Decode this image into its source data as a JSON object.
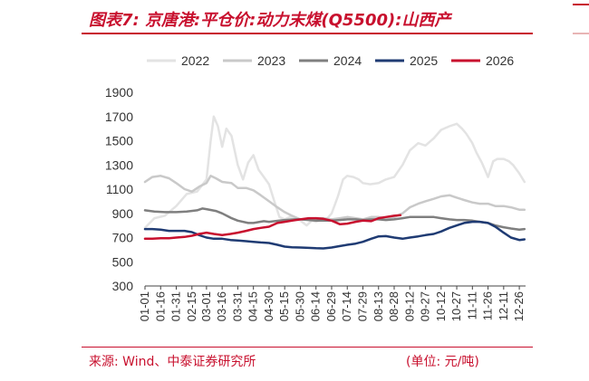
{
  "header": {
    "title": "图表7:  京唐港:平仓价:动力末煤(Q5500):山西产"
  },
  "footer": {
    "source": "来源:  Wind、中泰证券研究所",
    "unit": "(单位:  元/吨)"
  },
  "colors": {
    "accent": "#c8102e"
  },
  "chart_data": {
    "type": "line",
    "title": "",
    "xlabel": "",
    "ylabel": "",
    "ylim": [
      300,
      1900
    ],
    "yticks": [
      300,
      500,
      700,
      900,
      1100,
      1300,
      1500,
      1700,
      1900
    ],
    "xlim_doy": [
      1,
      366
    ],
    "xticks": [
      "01-01",
      "01-16",
      "01-31",
      "02-15",
      "03-01",
      "03-16",
      "03-31",
      "04-15",
      "04-30",
      "05-15",
      "05-30",
      "06-14",
      "06-29",
      "07-14",
      "07-29",
      "08-13",
      "08-28",
      "09-12",
      "09-27",
      "10-12",
      "10-27",
      "11-11",
      "11-26",
      "12-11",
      "12-26"
    ],
    "legend_position": "top",
    "grid": false,
    "series": [
      {
        "name": "2022",
        "color": "#e3e3e3",
        "points": [
          [
            "01-01",
            780
          ],
          [
            "01-10",
            860
          ],
          [
            "01-20",
            880
          ],
          [
            "01-31",
            960
          ],
          [
            "02-10",
            1060
          ],
          [
            "02-20",
            1080
          ],
          [
            "03-01",
            1180
          ],
          [
            "03-05",
            1500
          ],
          [
            "03-08",
            1700
          ],
          [
            "03-12",
            1620
          ],
          [
            "03-16",
            1450
          ],
          [
            "03-20",
            1600
          ],
          [
            "03-25",
            1540
          ],
          [
            "03-31",
            1300
          ],
          [
            "04-05",
            1180
          ],
          [
            "04-10",
            1320
          ],
          [
            "04-15",
            1380
          ],
          [
            "04-20",
            1260
          ],
          [
            "04-25",
            1200
          ],
          [
            "04-30",
            1140
          ],
          [
            "05-05",
            1000
          ],
          [
            "05-10",
            870
          ],
          [
            "05-15",
            850
          ],
          [
            "05-20",
            870
          ],
          [
            "05-25",
            850
          ],
          [
            "05-30",
            840
          ],
          [
            "06-05",
            800
          ],
          [
            "06-10",
            840
          ],
          [
            "06-14",
            830
          ],
          [
            "06-20",
            850
          ],
          [
            "06-25",
            860
          ],
          [
            "06-29",
            900
          ],
          [
            "07-05",
            1040
          ],
          [
            "07-10",
            1180
          ],
          [
            "07-14",
            1210
          ],
          [
            "07-20",
            1200
          ],
          [
            "07-25",
            1180
          ],
          [
            "07-29",
            1150
          ],
          [
            "08-05",
            1140
          ],
          [
            "08-13",
            1150
          ],
          [
            "08-20",
            1180
          ],
          [
            "08-28",
            1200
          ],
          [
            "09-05",
            1300
          ],
          [
            "09-12",
            1420
          ],
          [
            "09-20",
            1480
          ],
          [
            "09-27",
            1460
          ],
          [
            "10-05",
            1520
          ],
          [
            "10-12",
            1590
          ],
          [
            "10-20",
            1620
          ],
          [
            "10-27",
            1640
          ],
          [
            "11-01",
            1600
          ],
          [
            "11-05",
            1560
          ],
          [
            "11-11",
            1480
          ],
          [
            "11-15",
            1400
          ],
          [
            "11-20",
            1320
          ],
          [
            "11-26",
            1200
          ],
          [
            "12-01",
            1330
          ],
          [
            "12-05",
            1350
          ],
          [
            "12-11",
            1350
          ],
          [
            "12-16",
            1330
          ],
          [
            "12-20",
            1300
          ],
          [
            "12-26",
            1230
          ],
          [
            "12-31",
            1160
          ]
        ]
      },
      {
        "name": "2023",
        "color": "#c9c9c9",
        "points": [
          [
            "01-01",
            1160
          ],
          [
            "01-08",
            1200
          ],
          [
            "01-16",
            1210
          ],
          [
            "01-24",
            1190
          ],
          [
            "01-31",
            1150
          ],
          [
            "02-08",
            1100
          ],
          [
            "02-15",
            1080
          ],
          [
            "02-22",
            1120
          ],
          [
            "03-01",
            1150
          ],
          [
            "03-05",
            1210
          ],
          [
            "03-10",
            1190
          ],
          [
            "03-16",
            1160
          ],
          [
            "03-25",
            1150
          ],
          [
            "03-31",
            1110
          ],
          [
            "04-08",
            1110
          ],
          [
            "04-15",
            1090
          ],
          [
            "04-22",
            1050
          ],
          [
            "04-30",
            1000
          ],
          [
            "05-08",
            950
          ],
          [
            "05-15",
            910
          ],
          [
            "05-22",
            880
          ],
          [
            "05-30",
            850
          ],
          [
            "06-07",
            850
          ],
          [
            "06-14",
            860
          ],
          [
            "06-21",
            860
          ],
          [
            "06-29",
            850
          ],
          [
            "07-07",
            860
          ],
          [
            "07-14",
            870
          ],
          [
            "07-22",
            860
          ],
          [
            "07-29",
            850
          ],
          [
            "08-06",
            870
          ],
          [
            "08-13",
            870
          ],
          [
            "08-20",
            860
          ],
          [
            "08-28",
            870
          ],
          [
            "09-05",
            900
          ],
          [
            "09-12",
            950
          ],
          [
            "09-20",
            980
          ],
          [
            "09-27",
            1000
          ],
          [
            "10-05",
            1020
          ],
          [
            "10-12",
            1040
          ],
          [
            "10-20",
            1050
          ],
          [
            "10-27",
            1030
          ],
          [
            "11-03",
            1010
          ],
          [
            "11-11",
            990
          ],
          [
            "11-18",
            980
          ],
          [
            "11-26",
            980
          ],
          [
            "12-03",
            960
          ],
          [
            "12-11",
            960
          ],
          [
            "12-18",
            950
          ],
          [
            "12-26",
            930
          ],
          [
            "12-31",
            930
          ]
        ]
      },
      {
        "name": "2024",
        "color": "#7f7f7f",
        "points": [
          [
            "01-01",
            925
          ],
          [
            "01-10",
            915
          ],
          [
            "01-20",
            910
          ],
          [
            "01-31",
            910
          ],
          [
            "02-10",
            915
          ],
          [
            "02-20",
            925
          ],
          [
            "02-25",
            940
          ],
          [
            "03-01",
            935
          ],
          [
            "03-10",
            920
          ],
          [
            "03-16",
            900
          ],
          [
            "03-25",
            860
          ],
          [
            "03-31",
            840
          ],
          [
            "04-10",
            820
          ],
          [
            "04-15",
            820
          ],
          [
            "04-25",
            835
          ],
          [
            "04-30",
            830
          ],
          [
            "05-10",
            840
          ],
          [
            "05-15",
            845
          ],
          [
            "05-25",
            850
          ],
          [
            "05-30",
            850
          ],
          [
            "06-07",
            845
          ],
          [
            "06-14",
            840
          ],
          [
            "06-21",
            840
          ],
          [
            "06-29",
            840
          ],
          [
            "07-07",
            845
          ],
          [
            "07-14",
            850
          ],
          [
            "07-22",
            850
          ],
          [
            "07-29",
            845
          ],
          [
            "08-06",
            850
          ],
          [
            "08-13",
            850
          ],
          [
            "08-20",
            845
          ],
          [
            "08-28",
            850
          ],
          [
            "09-05",
            860
          ],
          [
            "09-12",
            870
          ],
          [
            "09-20",
            870
          ],
          [
            "09-27",
            870
          ],
          [
            "10-05",
            870
          ],
          [
            "10-12",
            860
          ],
          [
            "10-20",
            850
          ],
          [
            "10-27",
            845
          ],
          [
            "11-03",
            845
          ],
          [
            "11-11",
            840
          ],
          [
            "11-18",
            830
          ],
          [
            "11-26",
            820
          ],
          [
            "12-03",
            800
          ],
          [
            "12-11",
            785
          ],
          [
            "12-18",
            775
          ],
          [
            "12-26",
            765
          ],
          [
            "12-31",
            770
          ]
        ]
      },
      {
        "name": "2025",
        "color": "#1f3b73",
        "points": [
          [
            "01-01",
            770
          ],
          [
            "01-08",
            770
          ],
          [
            "01-16",
            765
          ],
          [
            "01-24",
            755
          ],
          [
            "01-31",
            755
          ],
          [
            "02-08",
            755
          ],
          [
            "02-15",
            745
          ],
          [
            "02-22",
            720
          ],
          [
            "03-01",
            700
          ],
          [
            "03-08",
            690
          ],
          [
            "03-16",
            690
          ],
          [
            "03-24",
            680
          ],
          [
            "03-31",
            675
          ],
          [
            "04-08",
            670
          ],
          [
            "04-15",
            665
          ],
          [
            "04-22",
            660
          ],
          [
            "04-30",
            655
          ],
          [
            "05-08",
            640
          ],
          [
            "05-15",
            625
          ],
          [
            "05-22",
            620
          ],
          [
            "05-30",
            618
          ],
          [
            "06-07",
            615
          ],
          [
            "06-14",
            612
          ],
          [
            "06-21",
            610
          ],
          [
            "06-29",
            618
          ],
          [
            "07-07",
            630
          ],
          [
            "07-14",
            640
          ],
          [
            "07-22",
            650
          ],
          [
            "07-29",
            665
          ],
          [
            "08-06",
            690
          ],
          [
            "08-13",
            710
          ],
          [
            "08-20",
            712
          ],
          [
            "08-28",
            700
          ],
          [
            "09-05",
            690
          ],
          [
            "09-12",
            700
          ],
          [
            "09-20",
            710
          ],
          [
            "09-27",
            720
          ],
          [
            "10-05",
            730
          ],
          [
            "10-12",
            750
          ],
          [
            "10-20",
            780
          ],
          [
            "10-27",
            800
          ],
          [
            "11-03",
            820
          ],
          [
            "11-11",
            830
          ],
          [
            "11-18",
            830
          ],
          [
            "11-26",
            820
          ],
          [
            "12-03",
            790
          ],
          [
            "12-11",
            740
          ],
          [
            "12-18",
            700
          ],
          [
            "12-26",
            680
          ],
          [
            "12-31",
            685
          ]
        ]
      },
      {
        "name": "2026",
        "color": "#c8102e",
        "points": [
          [
            "01-01",
            690
          ],
          [
            "01-08",
            690
          ],
          [
            "01-16",
            695
          ],
          [
            "01-24",
            695
          ],
          [
            "01-31",
            700
          ],
          [
            "02-08",
            705
          ],
          [
            "02-15",
            715
          ],
          [
            "02-22",
            730
          ],
          [
            "03-01",
            740
          ],
          [
            "03-08",
            730
          ],
          [
            "03-16",
            720
          ],
          [
            "03-24",
            730
          ],
          [
            "03-31",
            740
          ],
          [
            "04-08",
            755
          ],
          [
            "04-15",
            770
          ],
          [
            "04-22",
            780
          ],
          [
            "04-30",
            790
          ],
          [
            "05-08",
            820
          ],
          [
            "05-15",
            830
          ],
          [
            "05-22",
            840
          ],
          [
            "05-30",
            850
          ],
          [
            "06-07",
            860
          ],
          [
            "06-14",
            860
          ],
          [
            "06-21",
            855
          ],
          [
            "06-29",
            840
          ],
          [
            "07-07",
            810
          ],
          [
            "07-14",
            815
          ],
          [
            "07-22",
            830
          ],
          [
            "07-29",
            840
          ],
          [
            "08-06",
            835
          ],
          [
            "08-13",
            860
          ],
          [
            "08-20",
            870
          ],
          [
            "08-28",
            880
          ],
          [
            "09-03",
            885
          ]
        ]
      }
    ]
  }
}
